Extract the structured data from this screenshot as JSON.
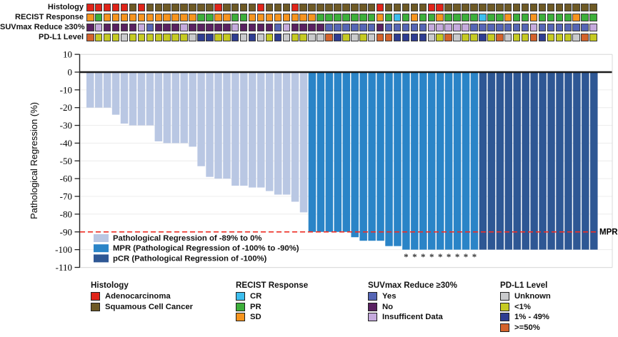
{
  "tracks": {
    "rows": [
      {
        "label": "Histology",
        "palette": {
          "A": "#e02419",
          "S": "#6e5a25"
        },
        "cells": [
          "A",
          "A",
          "A",
          "A",
          "A",
          "S",
          "A",
          "S",
          "S",
          "S",
          "S",
          "S",
          "S",
          "S",
          "S",
          "A",
          "S",
          "S",
          "S",
          "S",
          "A",
          "S",
          "S",
          "S",
          "A",
          "S",
          "S",
          "S",
          "S",
          "S",
          "S",
          "S",
          "S",
          "S",
          "A",
          "S",
          "S",
          "S",
          "S",
          "S",
          "A",
          "A",
          "S",
          "S",
          "S",
          "S",
          "S",
          "S",
          "S",
          "S",
          "S",
          "S",
          "S",
          "S",
          "S",
          "S",
          "S",
          "S",
          "S",
          "S"
        ]
      },
      {
        "label": "RECIST Response",
        "palette": {
          "SD": "#f6941e",
          "PR": "#3daf3a",
          "CR": "#3dbeee"
        },
        "cells": [
          "SD",
          "PR",
          "SD",
          "SD",
          "SD",
          "SD",
          "SD",
          "SD",
          "SD",
          "SD",
          "SD",
          "SD",
          "SD",
          "PR",
          "PR",
          "SD",
          "SD",
          "PR",
          "PR",
          "SD",
          "SD",
          "SD",
          "SD",
          "SD",
          "SD",
          "SD",
          "SD",
          "PR",
          "PR",
          "PR",
          "PR",
          "PR",
          "PR",
          "PR",
          "SD",
          "PR",
          "CR",
          "PR",
          "SD",
          "PR",
          "PR",
          "SD",
          "PR",
          "PR",
          "PR",
          "PR",
          "CR",
          "PR",
          "PR",
          "SD",
          "PR",
          "PR",
          "SD",
          "PR",
          "PR",
          "PR",
          "PR",
          "SD",
          "PR",
          "PR"
        ]
      },
      {
        "label": "SUVmax Reduce ≥30%",
        "palette": {
          "Y": "#5565b5",
          "N": "#5a2161",
          "I": "#c5aadd"
        },
        "cells": [
          "N",
          "I",
          "N",
          "N",
          "N",
          "N",
          "I",
          "Y",
          "N",
          "N",
          "N",
          "I",
          "N",
          "N",
          "N",
          "N",
          "N",
          "I",
          "N",
          "N",
          "N",
          "N",
          "Y",
          "I",
          "N",
          "N",
          "N",
          "N",
          "Y",
          "Y",
          "Y",
          "Y",
          "Y",
          "Y",
          "N",
          "Y",
          "Y",
          "Y",
          "Y",
          "Y",
          "I",
          "I",
          "I",
          "I",
          "I",
          "Y",
          "Y",
          "Y",
          "Y",
          "Y",
          "Y",
          "Y",
          "I",
          "Y",
          "Y",
          "Y",
          "Y",
          "Y",
          "Y",
          "I"
        ]
      },
      {
        "label": "PD-L1 Level",
        "palette": {
          "U": "#c9cacc",
          "Y": "#c5ca22",
          "B": "#2e3d92",
          "O": "#d4632b"
        },
        "cells": [
          "O",
          "Y",
          "Y",
          "Y",
          "U",
          "Y",
          "Y",
          "Y",
          "Y",
          "Y",
          "Y",
          "Y",
          "U",
          "B",
          "B",
          "Y",
          "Y",
          "B",
          "U",
          "B",
          "U",
          "Y",
          "B",
          "U",
          "Y",
          "Y",
          "U",
          "U",
          "O",
          "B",
          "Y",
          "U",
          "Y",
          "U",
          "O",
          "O",
          "B",
          "B",
          "B",
          "B",
          "U",
          "Y",
          "O",
          "U",
          "Y",
          "Y",
          "B",
          "Y",
          "O",
          "U",
          "Y",
          "Y",
          "O",
          "B",
          "Y",
          "Y",
          "Y",
          "U",
          "O",
          "Y"
        ]
      }
    ]
  },
  "chart_data": {
    "type": "bar",
    "title": "",
    "xlabel": "",
    "ylabel": "Pathological Regression (%)",
    "ylim": [
      -110,
      10
    ],
    "yticks": [
      10,
      0,
      -10,
      -20,
      -30,
      -40,
      -50,
      -60,
      -70,
      -80,
      -90,
      -100,
      -110
    ],
    "grid": "horizontal-light",
    "n_patients": 60,
    "segments": [
      {
        "name": "light",
        "color": "#b9c7e3",
        "count": 26
      },
      {
        "name": "mpr",
        "color": "#2a84c7",
        "count": 20
      },
      {
        "name": "pcr",
        "color": "#2e5794",
        "count": 14
      }
    ],
    "values": [
      -20,
      -20,
      -20,
      -24,
      -29,
      -30,
      -30,
      -30,
      -39,
      -40,
      -40,
      -40,
      -42,
      -53,
      -59,
      -60,
      -60,
      -64,
      -64,
      -65,
      -65,
      -67,
      -69,
      -69,
      -73,
      -79,
      -90,
      -90,
      -90,
      -90,
      -90,
      -93,
      -95,
      -95,
      -95,
      -98,
      -98,
      -100,
      -100,
      -100,
      -100,
      -100,
      -100,
      -100,
      -100,
      -100,
      -100,
      -100,
      -100,
      -100,
      -100,
      -100,
      -100,
      -100,
      -100,
      -100,
      -100,
      -100,
      -100,
      -100
    ],
    "asterisk_bars": [
      38,
      39,
      40,
      41,
      42,
      43,
      44,
      45,
      46
    ],
    "reference_line": {
      "value": -90,
      "label": "MPR",
      "color": "#ee2f26",
      "style": "dashed"
    }
  },
  "plot_legend": {
    "items": [
      {
        "key": "light",
        "label": "Pathological Regression of -89% to 0%"
      },
      {
        "key": "mpr",
        "label": "MPR (Pathological Regression of -100% to -90%)"
      },
      {
        "key": "pcr",
        "label": "pCR (Pathological Regression of -100%)"
      }
    ]
  },
  "bottom_legend": {
    "groups": [
      {
        "title": "Histology",
        "items": [
          {
            "label": "Adenocarcinoma",
            "color": "#e02419"
          },
          {
            "label": "Squamous Cell Cancer",
            "color": "#6e5a25"
          }
        ]
      },
      {
        "title": "RECIST Response",
        "items": [
          {
            "label": "CR",
            "color": "#3dbeee"
          },
          {
            "label": "PR",
            "color": "#3daf3a"
          },
          {
            "label": "SD",
            "color": "#f6941e"
          }
        ]
      },
      {
        "title": "SUVmax Reduce ≥30%",
        "items": [
          {
            "label": "Yes",
            "color": "#5565b5"
          },
          {
            "label": "No",
            "color": "#5a2161"
          },
          {
            "label": "Insufficent Data",
            "color": "#c5aadd"
          }
        ]
      },
      {
        "title": "PD-L1 Level",
        "items": [
          {
            "label": "Unknown",
            "color": "#c9cacc"
          },
          {
            "label": "<1%",
            "color": "#c5ca22"
          },
          {
            "label": "1% - 49%",
            "color": "#2e3d92"
          },
          {
            "label": ">=50%",
            "color": "#d4632b"
          }
        ]
      }
    ]
  }
}
